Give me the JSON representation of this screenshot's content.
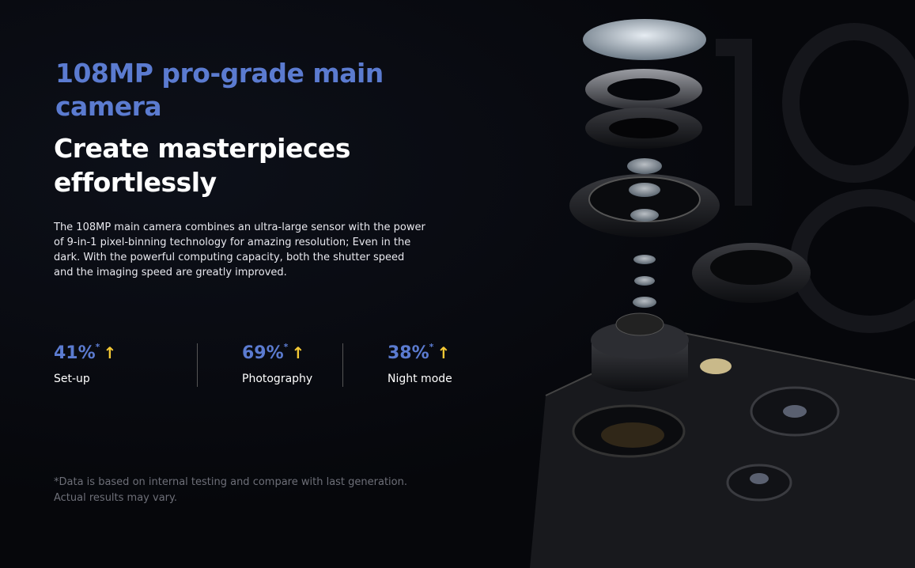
{
  "headline": "108MP pro-grade main camera",
  "subheadline": "Create masterpieces effortlessly",
  "description": "The 108MP main camera combines an ultra-large sensor with the power of 9-in-1 pixel-binning technology for amazing resolution; Even in the dark. With the powerful computing capacity, both the shutter speed and the imaging speed are greatly improved.",
  "stats": [
    {
      "value": "41%",
      "mark": "*",
      "label": "Set-up",
      "icon": "arrow-up-icon"
    },
    {
      "value": "69%",
      "mark": "*",
      "label": "Photography",
      "icon": "arrow-up-icon"
    },
    {
      "value": "38%",
      "mark": "*",
      "label": "Night mode",
      "icon": "arrow-up-icon"
    }
  ],
  "footnote": "*Data is based on internal testing and compare with last generation. Actual results may vary.",
  "colors": {
    "accent": "#5b7bd0",
    "arrow": "#f5c935",
    "background": "#06070b"
  }
}
